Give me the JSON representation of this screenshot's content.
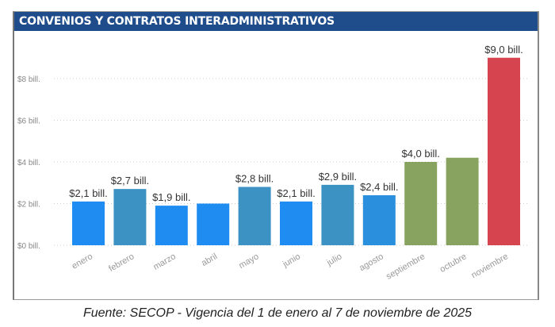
{
  "title": "CONVENIOS Y CONTRATOS INTERADMINISTRATIVOS",
  "caption": "Fuente: SECOP - Vigencia del 1 de enero al 7 de noviembre de 2025",
  "chart_data": {
    "type": "bar",
    "title": "CONVENIOS Y CONTRATOS INTERADMINISTRATIVOS",
    "unit": "bill.",
    "categories": [
      "enero",
      "febrero",
      "marzo",
      "abril",
      "mayo",
      "junio",
      "julio",
      "agosto",
      "septiembre",
      "octubre",
      "noviembre"
    ],
    "values": [
      2.1,
      2.7,
      1.9,
      2.0,
      2.8,
      2.1,
      2.9,
      2.4,
      4.0,
      4.2,
      9.0
    ],
    "data_labels": [
      "$2,1 bill.",
      "$2,7 bill.",
      "$1,9 bill.",
      "",
      "$2,8 bill.",
      "$2,1 bill.",
      "$2,9 bill.",
      "$2,4 bill.",
      "$4,0 bill.",
      "",
      "$9,0 bill."
    ],
    "colors": [
      "#1e8cf0",
      "#3d92c4",
      "#1e8cf0",
      "#1e8cf0",
      "#3d92c4",
      "#1e8cf0",
      "#3d92c4",
      "#2a8fdc",
      "#88a35f",
      "#88a35f",
      "#d6444f"
    ],
    "yticks": [
      0,
      2,
      4,
      6,
      8
    ],
    "ytick_labels": [
      "$0 bill.",
      "$2 bill.",
      "$4 bill.",
      "$6 bill.",
      "$8 bill."
    ],
    "ylim": [
      0,
      9.5
    ],
    "grid": true,
    "xlabel": "",
    "ylabel": ""
  }
}
